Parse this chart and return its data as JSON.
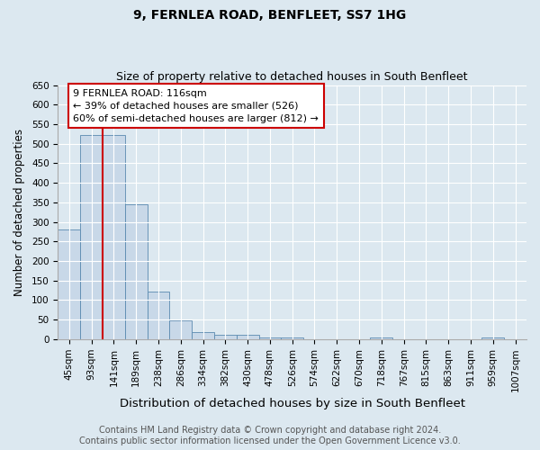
{
  "title": "9, FERNLEA ROAD, BENFLEET, SS7 1HG",
  "subtitle": "Size of property relative to detached houses in South Benfleet",
  "xlabel": "Distribution of detached houses by size in South Benfleet",
  "ylabel": "Number of detached properties",
  "bin_labels": [
    "45sqm",
    "93sqm",
    "141sqm",
    "189sqm",
    "238sqm",
    "286sqm",
    "334sqm",
    "382sqm",
    "430sqm",
    "478sqm",
    "526sqm",
    "574sqm",
    "622sqm",
    "670sqm",
    "718sqm",
    "767sqm",
    "815sqm",
    "863sqm",
    "911sqm",
    "959sqm",
    "1007sqm"
  ],
  "bar_values": [
    280,
    522,
    522,
    345,
    122,
    48,
    18,
    10,
    10,
    5,
    4,
    0,
    0,
    0,
    5,
    0,
    0,
    0,
    0,
    5,
    0
  ],
  "bar_color": "#c8d8e8",
  "bar_edge_color": "#5a8ab0",
  "property_line_x": 1.5,
  "annotation_line1": "9 FERNLEA ROAD: 116sqm",
  "annotation_line2": "← 39% of detached houses are smaller (526)",
  "annotation_line3": "60% of semi-detached houses are larger (812) →",
  "annotation_box_color": "#ffffff",
  "annotation_box_edge": "#cc0000",
  "red_line_color": "#cc0000",
  "ylim": [
    0,
    650
  ],
  "yticks": [
    0,
    50,
    100,
    150,
    200,
    250,
    300,
    350,
    400,
    450,
    500,
    550,
    600,
    650
  ],
  "footer_line1": "Contains HM Land Registry data © Crown copyright and database right 2024.",
  "footer_line2": "Contains public sector information licensed under the Open Government Licence v3.0.",
  "bg_color": "#dce8f0",
  "plot_bg_color": "#dce8f0",
  "title_fontsize": 10,
  "subtitle_fontsize": 9,
  "xlabel_fontsize": 9.5,
  "ylabel_fontsize": 8.5,
  "tick_fontsize": 7.5,
  "annot_fontsize": 8,
  "footer_fontsize": 7
}
